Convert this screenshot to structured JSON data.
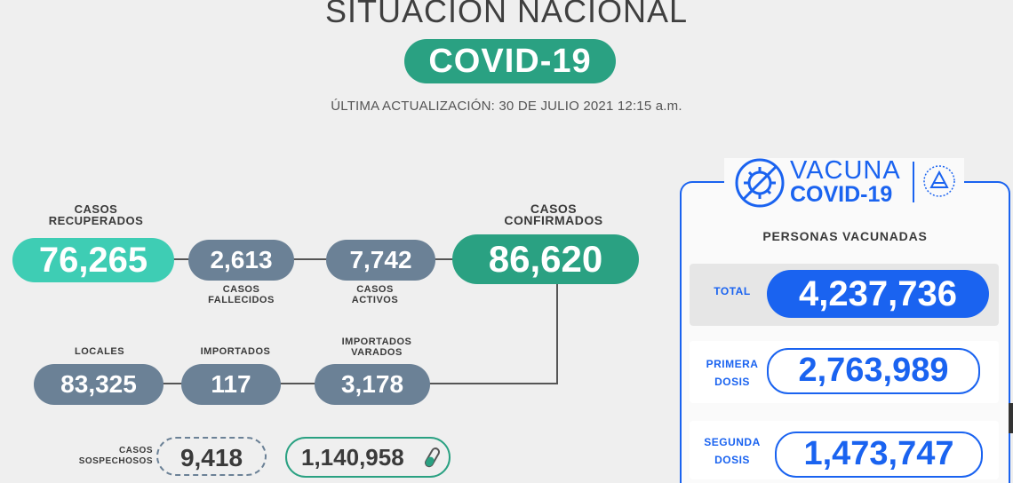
{
  "header": {
    "title": "SITUACIÓN NACIONAL",
    "badge": "COVID-19",
    "updated": "ÚLTIMA ACTUALIZACIÓN: 30 DE JULIO 2021 12:15 a.m."
  },
  "stats": {
    "recuperados": {
      "label_1": "CASOS",
      "label_2": "RECUPERADOS",
      "value": "76,265"
    },
    "fallecidos": {
      "label_1": "CASOS",
      "label_2": "FALLECIDOS",
      "value": "2,613"
    },
    "activos": {
      "label_1": "CASOS",
      "label_2": "ACTIVOS",
      "value": "7,742"
    },
    "confirmados": {
      "label_1": "CASOS",
      "label_2": "CONFIRMADOS",
      "value": "86,620"
    },
    "locales": {
      "label": "LOCALES",
      "value": "83,325"
    },
    "importados": {
      "label": "IMPORTADOS",
      "value": "117"
    },
    "varados": {
      "label_1": "IMPORTADOS",
      "label_2": "VARADOS",
      "value": "3,178"
    },
    "sospechosos": {
      "label_1": "CASOS",
      "label_2": "SOSPECHOSOS",
      "value": "9,418"
    },
    "pruebas": {
      "value": "1,140,958",
      "icon": "test-tube-icon"
    }
  },
  "vacuna": {
    "logo_line_1": "VACUNA",
    "logo_line_2": "COVID-19",
    "heading": "PERSONAS VACUNADAS",
    "total_label": "TOTAL",
    "total_value": "4,237,736",
    "primera_label_1": "PRIMERA",
    "primera_label_2": "DOSIS",
    "primera_value": "2,763,989",
    "segunda_label_1": "SEGUNDA",
    "segunda_label_2": "DOSIS",
    "segunda_value": "1,473,747"
  },
  "colors": {
    "teal_light": "#3ecdb4",
    "teal_dark": "#2aa182",
    "slate": "#6b8196",
    "blue": "#1a63f0",
    "line": "#555555"
  }
}
